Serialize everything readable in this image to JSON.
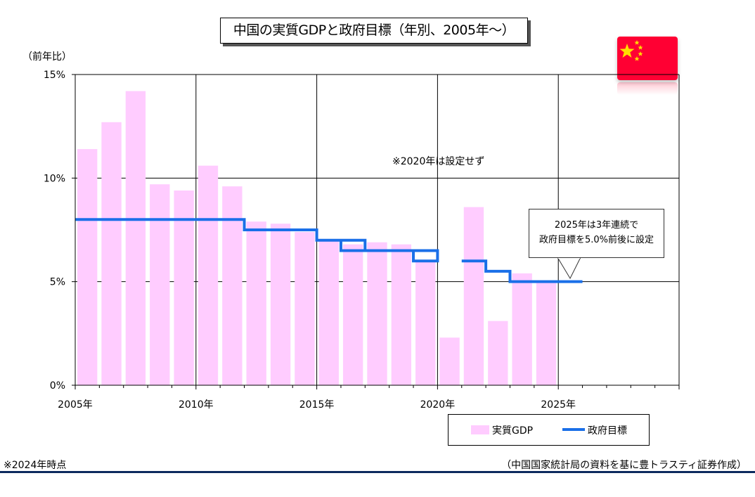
{
  "title": "中国の実質GDPと政府目標（年別、2005年～）",
  "y_unit": "（前年比）",
  "note_2020": "※2020年は設定せず",
  "callout": {
    "line1": "2025年は3年連続で",
    "line2": "政府目標を5.0%前後に設定"
  },
  "legend": {
    "gdp": "実質GDP",
    "target": "政府目標"
  },
  "footnote_left": "※2024年時点",
  "footnote_right": "（中国国家統計局の資料を基に豊トラスティ証券作成）",
  "colors": {
    "gdp": "#ffccff",
    "target": "#1a6fe8",
    "flag": "#ff0033",
    "star": "#ffde00"
  },
  "flag_icon": "china-flag-icon",
  "chart_data": {
    "type": "bar",
    "x_start": 2005,
    "x_end": 2030,
    "ylim": [
      0,
      15
    ],
    "yticks": [
      0,
      5,
      10,
      15
    ],
    "ytick_labels": [
      "0%",
      "5%",
      "10%",
      "15%"
    ],
    "xticks": [
      2005,
      2010,
      2015,
      2020,
      2025
    ],
    "xtick_labels": [
      "2005年",
      "2010年",
      "2015年",
      "2020年",
      "2025年"
    ],
    "grid": true,
    "legend_position": "bottom-right",
    "series": [
      {
        "name": "実質GDP",
        "type": "bar",
        "x": [
          2005,
          2006,
          2007,
          2008,
          2009,
          2010,
          2011,
          2012,
          2013,
          2014,
          2015,
          2016,
          2017,
          2018,
          2019,
          2020,
          2021,
          2022,
          2023,
          2024
        ],
        "values": [
          11.4,
          12.7,
          14.2,
          9.7,
          9.4,
          10.6,
          9.6,
          7.9,
          7.8,
          7.4,
          7.0,
          6.8,
          6.9,
          6.8,
          6.0,
          2.3,
          8.6,
          3.1,
          5.4,
          5.0
        ]
      },
      {
        "name": "政府目標",
        "type": "step",
        "x": [
          2005,
          2006,
          2007,
          2008,
          2009,
          2010,
          2011,
          2012,
          2013,
          2014,
          2015,
          2016,
          2017,
          2018,
          2019,
          2021,
          2022,
          2023,
          2024,
          2025
        ],
        "values": [
          8.0,
          8.0,
          8.0,
          8.0,
          8.0,
          8.0,
          8.0,
          7.5,
          7.5,
          7.5,
          7.0,
          6.5,
          6.5,
          6.5,
          6.0,
          6.0,
          5.5,
          5.0,
          5.0,
          5.0
        ],
        "range_high": [
          8.0,
          8.0,
          8.0,
          8.0,
          8.0,
          8.0,
          8.0,
          7.5,
          7.5,
          7.5,
          7.0,
          7.0,
          6.5,
          6.5,
          6.5,
          6.0,
          5.5,
          5.0,
          5.0,
          5.0
        ]
      }
    ]
  }
}
